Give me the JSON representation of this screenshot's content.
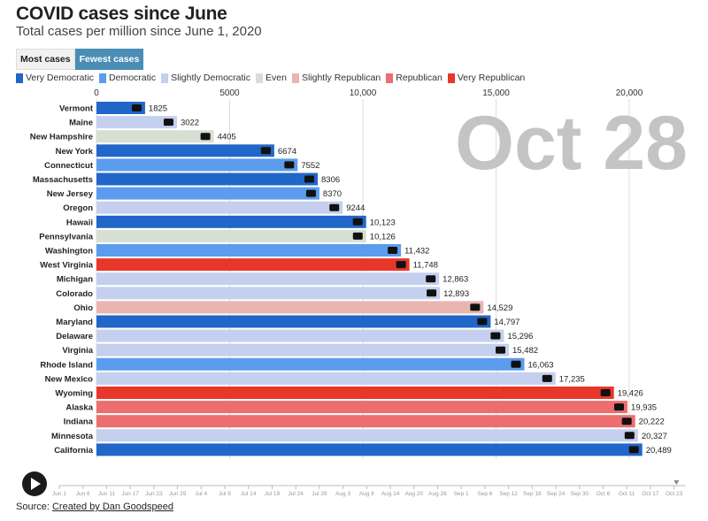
{
  "header": {
    "title": "COVID cases since June",
    "subtitle": "Total cases per million since June 1, 2020"
  },
  "toggle": {
    "most_label": "Most cases",
    "fewest_label": "Fewest cases",
    "active": "fewest"
  },
  "legend": [
    {
      "label": "Very Democratic",
      "color": "#2166c9"
    },
    {
      "label": "Democratic",
      "color": "#5b9cee"
    },
    {
      "label": "Slightly Democratic",
      "color": "#c5d0ee"
    },
    {
      "label": "Even",
      "color": "#d6dfd4"
    },
    {
      "label": "Slightly Republican",
      "color": "#e8b5b1"
    },
    {
      "label": "Republican",
      "color": "#ec6e6e"
    },
    {
      "label": "Very Republican",
      "color": "#e8362b"
    }
  ],
  "current_date": "Oct 28",
  "chart_data": {
    "type": "bar",
    "orientation": "horizontal",
    "xlim": [
      0,
      20500
    ],
    "xticks": [
      0,
      5000,
      10000,
      15000,
      20000
    ],
    "xtick_labels": [
      "0",
      "5000",
      "10,000",
      "15,000",
      "20,000"
    ],
    "grid": true,
    "bars": [
      {
        "state": "Vermont",
        "value": 1825,
        "label": "1825",
        "lean": "Very Democratic"
      },
      {
        "state": "Maine",
        "value": 3022,
        "label": "3022",
        "lean": "Slightly Democratic"
      },
      {
        "state": "New Hampshire",
        "value": 4405,
        "label": "4405",
        "lean": "Even"
      },
      {
        "state": "New York",
        "value": 6674,
        "label": "6674",
        "lean": "Very Democratic"
      },
      {
        "state": "Connecticut",
        "value": 7552,
        "label": "7552",
        "lean": "Democratic"
      },
      {
        "state": "Massachusetts",
        "value": 8306,
        "label": "8306",
        "lean": "Very Democratic"
      },
      {
        "state": "New Jersey",
        "value": 8370,
        "label": "8370",
        "lean": "Democratic"
      },
      {
        "state": "Oregon",
        "value": 9244,
        "label": "9244",
        "lean": "Slightly Democratic"
      },
      {
        "state": "Hawaii",
        "value": 10123,
        "label": "10,123",
        "lean": "Very Democratic"
      },
      {
        "state": "Pennsylvania",
        "value": 10126,
        "label": "10,126",
        "lean": "Even"
      },
      {
        "state": "Washington",
        "value": 11432,
        "label": "11,432",
        "lean": "Democratic"
      },
      {
        "state": "West Virginia",
        "value": 11748,
        "label": "11,748",
        "lean": "Very Republican"
      },
      {
        "state": "Michigan",
        "value": 12863,
        "label": "12,863",
        "lean": "Slightly Democratic"
      },
      {
        "state": "Colorado",
        "value": 12893,
        "label": "12,893",
        "lean": "Slightly Democratic"
      },
      {
        "state": "Ohio",
        "value": 14529,
        "label": "14,529",
        "lean": "Slightly Republican"
      },
      {
        "state": "Maryland",
        "value": 14797,
        "label": "14,797",
        "lean": "Very Democratic"
      },
      {
        "state": "Delaware",
        "value": 15296,
        "label": "15,296",
        "lean": "Slightly Democratic"
      },
      {
        "state": "Virginia",
        "value": 15482,
        "label": "15,482",
        "lean": "Slightly Democratic"
      },
      {
        "state": "Rhode Island",
        "value": 16063,
        "label": "16,063",
        "lean": "Democratic"
      },
      {
        "state": "New Mexico",
        "value": 17235,
        "label": "17,235",
        "lean": "Slightly Democratic"
      },
      {
        "state": "Wyoming",
        "value": 19426,
        "label": "19,426",
        "lean": "Very Republican"
      },
      {
        "state": "Alaska",
        "value": 19935,
        "label": "19,935",
        "lean": "Republican"
      },
      {
        "state": "Indiana",
        "value": 20222,
        "label": "20,222",
        "lean": "Republican"
      },
      {
        "state": "Minnesota",
        "value": 20327,
        "label": "20,327",
        "lean": "Slightly Democratic"
      },
      {
        "state": "California",
        "value": 20489,
        "label": "20,489",
        "lean": "Very Democratic"
      }
    ]
  },
  "timeline": {
    "labels": [
      "Jun 1",
      "Jun 6",
      "Jun 11",
      "Jun 17",
      "Jun 23",
      "Jun 29",
      "Jul 4",
      "Jul 9",
      "Jul 14",
      "Jul 19",
      "Jul 24",
      "Jul 29",
      "Aug 3",
      "Aug 8",
      "Aug 14",
      "Aug 20",
      "Aug 26",
      "Sep 1",
      "Sep 6",
      "Sep 12",
      "Sep 18",
      "Sep 24",
      "Sep 30",
      "Oct 6",
      "Oct 11",
      "Oct 17",
      "Oct 23"
    ],
    "progress": 0.985
  },
  "source": {
    "prefix": "Source: ",
    "link_text": "Created by Dan Goodspeed"
  }
}
